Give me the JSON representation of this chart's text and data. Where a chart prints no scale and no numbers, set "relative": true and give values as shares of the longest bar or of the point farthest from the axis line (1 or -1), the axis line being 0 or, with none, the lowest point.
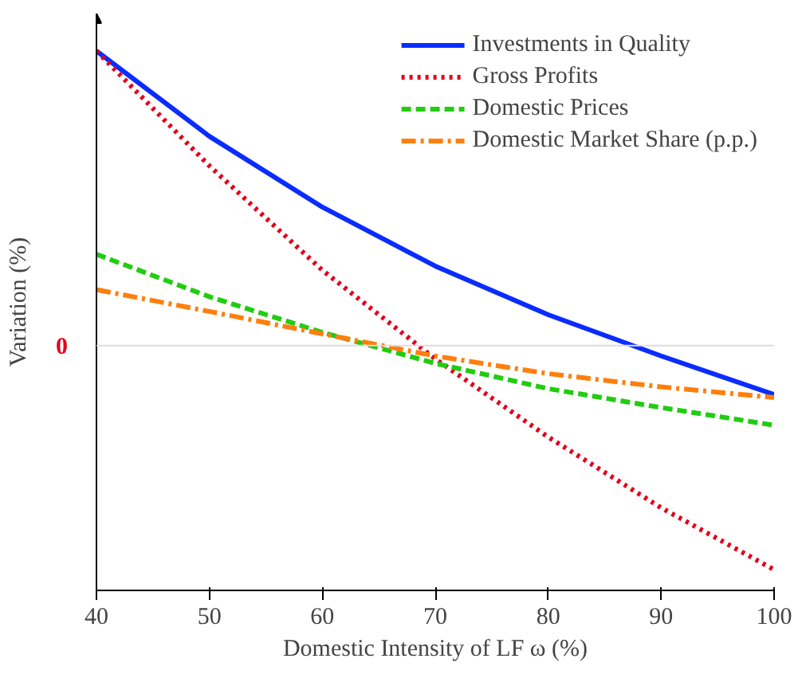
{
  "chart_data": {
    "type": "line",
    "relative": true,
    "xlabel": "Domestic Intensity of LF ω (%)",
    "ylabel": "Variation (%)",
    "x": [
      40,
      50,
      60,
      70,
      80,
      90,
      100
    ],
    "xlim": [
      40,
      100
    ],
    "xticks": [
      40,
      50,
      60,
      70,
      80,
      90,
      100
    ],
    "series": [
      {
        "name": "Investments in Quality",
        "color": "#0a2cff",
        "line_style": "solid",
        "values": [
          1.0,
          0.71,
          0.47,
          0.27,
          0.105,
          -0.035,
          -0.166
        ]
      },
      {
        "name": "Gross Profits",
        "color": "#e3001b",
        "line_style": "dotted",
        "values": [
          1.0,
          0.61,
          0.256,
          -0.045,
          -0.31,
          -0.55,
          -0.76
        ]
      },
      {
        "name": "Domestic Prices",
        "color": "#22cc11",
        "line_style": "dashed",
        "values": [
          0.31,
          0.166,
          0.045,
          -0.06,
          -0.146,
          -0.21,
          -0.27
        ]
      },
      {
        "name": "Domestic Market Share (p.p.)",
        "color": "#ff7f0e",
        "line_style": "dashdot",
        "values": [
          0.19,
          0.116,
          0.04,
          -0.035,
          -0.095,
          -0.14,
          -0.176
        ]
      }
    ],
    "ref_lines": [
      {
        "axis": "y",
        "value": 0,
        "label": "0",
        "color": "#dddddd"
      }
    ],
    "legend": "top right",
    "grid": false
  }
}
